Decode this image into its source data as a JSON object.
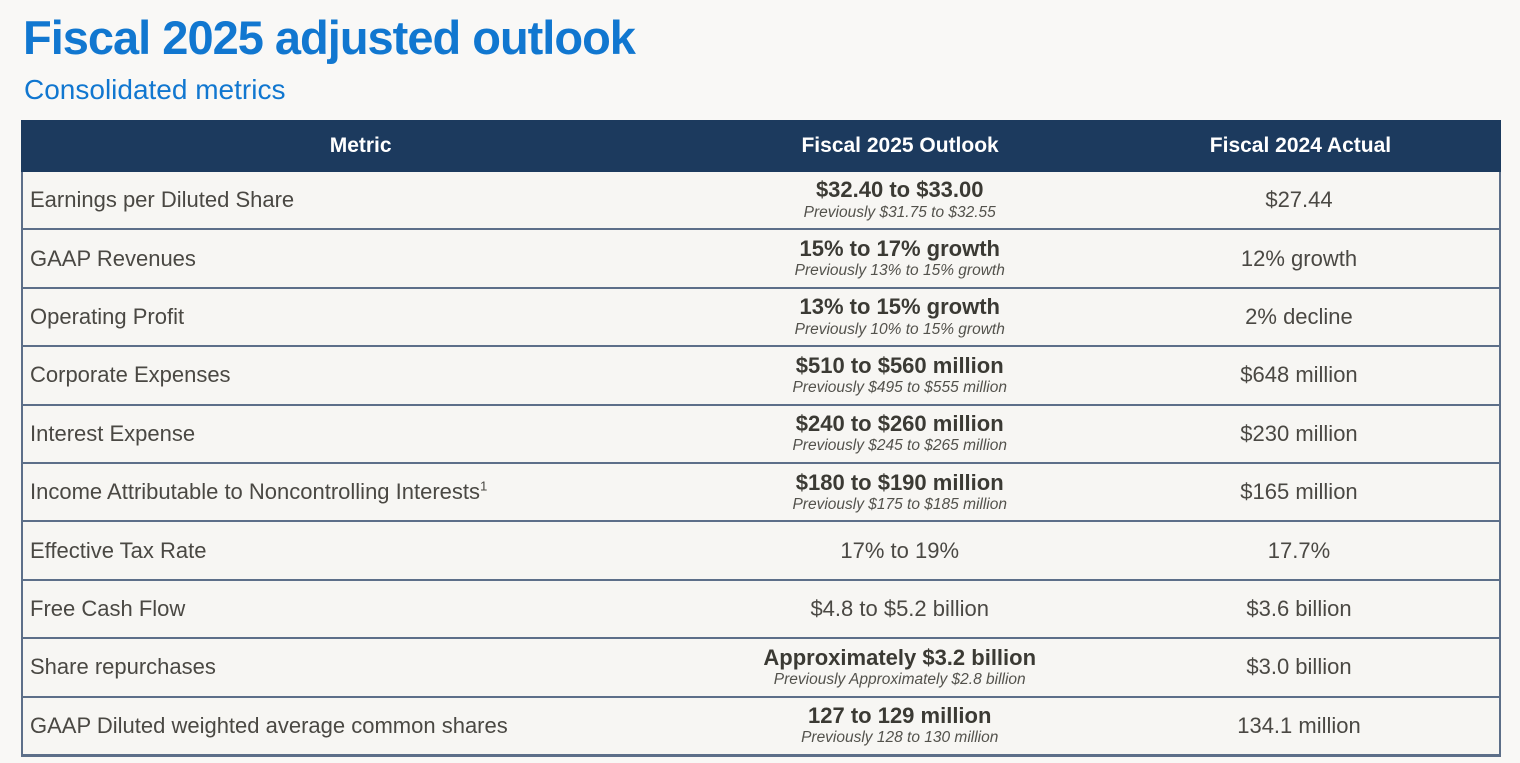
{
  "page": {
    "title": "Fiscal 2025 adjusted outlook",
    "subtitle": "Consolidated metrics"
  },
  "colors": {
    "accent_blue": "#1177d0",
    "header_navy": "#1c3a5e",
    "row_border_slate": "#5d6f89",
    "cell_background": "#f7f6f3",
    "value_text": "#3b3a34"
  },
  "table": {
    "columns": [
      "Metric",
      "Fiscal 2025 Outlook",
      "Fiscal 2024 Actual"
    ],
    "rows": [
      {
        "metric": "Earnings per Diluted Share",
        "outlook": "$32.40 to $33.00",
        "previously": "Previously $31.75 to $32.55",
        "actual": "$27.44",
        "bold": true
      },
      {
        "metric": "GAAP Revenues",
        "outlook": "15% to 17% growth",
        "previously": "Previously 13% to 15% growth",
        "actual": "12% growth",
        "bold": true
      },
      {
        "metric": "Operating Profit",
        "outlook": "13% to 15% growth",
        "previously": "Previously 10% to 15% growth",
        "actual": "2% decline",
        "bold": true
      },
      {
        "metric": "Corporate Expenses",
        "outlook": "$510 to $560 million",
        "previously": "Previously $495 to $555 million",
        "actual": "$648 million",
        "bold": true
      },
      {
        "metric": "Interest Expense",
        "outlook": "$240 to $260 million",
        "previously": "Previously $245 to $265 million",
        "actual": "$230 million",
        "bold": true
      },
      {
        "metric": "Income Attributable to Noncontrolling Interests",
        "metric_superscript": "1",
        "outlook": "$180 to $190 million",
        "previously": "Previously $175 to $185 million",
        "actual": "$165 million",
        "bold": true
      },
      {
        "metric": "Effective Tax Rate",
        "outlook": "17% to 19%",
        "previously": "",
        "actual": "17.7%",
        "bold": false
      },
      {
        "metric": "Free Cash Flow",
        "outlook": "$4.8 to $5.2 billion",
        "previously": "",
        "actual": "$3.6 billion",
        "bold": false
      },
      {
        "metric": "Share repurchases",
        "outlook": "Approximately $3.2 billion",
        "previously": "Previously Approximately $2.8 billion",
        "actual": "$3.0 billion",
        "bold": true
      },
      {
        "metric": "GAAP Diluted weighted average common shares",
        "outlook": "127 to 129 million",
        "previously": "Previously 128 to 130 million",
        "actual": "134.1 million",
        "bold": true
      }
    ]
  }
}
